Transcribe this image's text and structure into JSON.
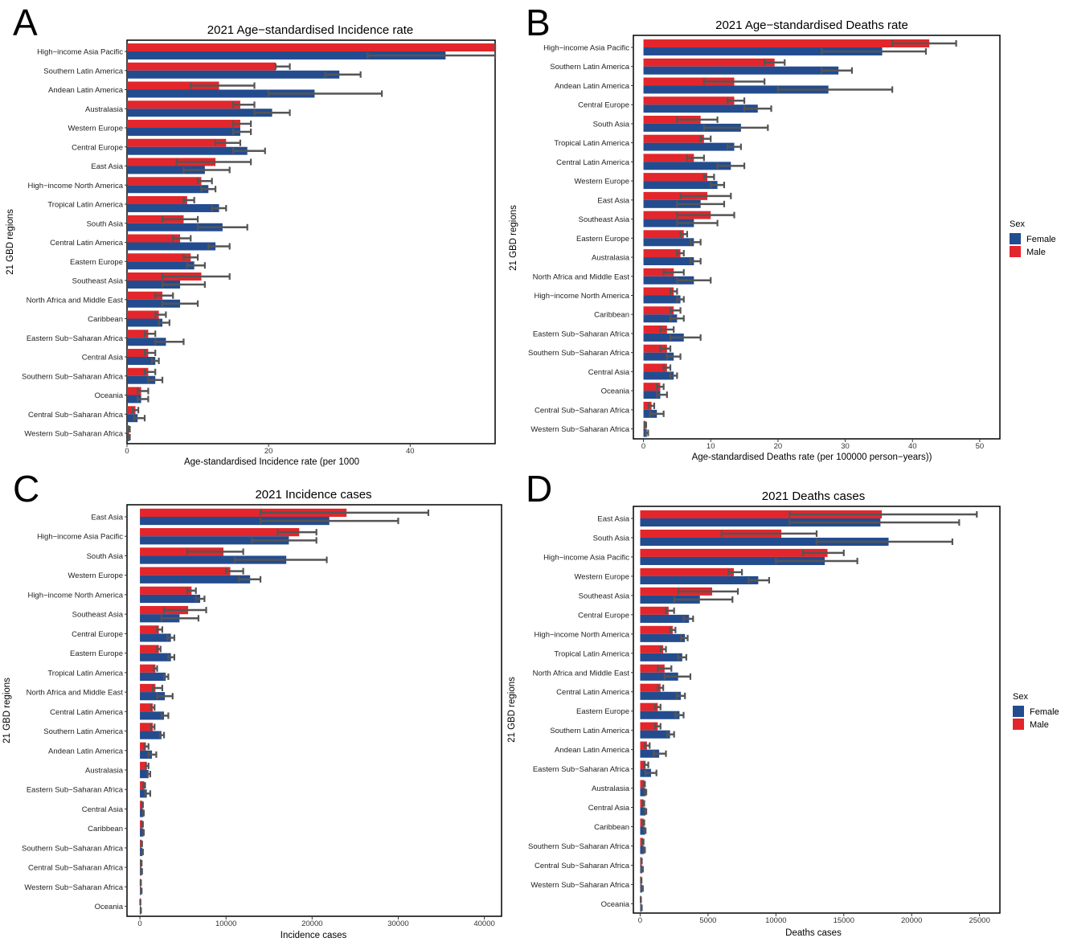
{
  "colors": {
    "female": "#234c8f",
    "male": "#e3262b",
    "error": "#555555"
  },
  "legend": {
    "title": "Sex",
    "items": [
      "Female",
      "Male"
    ]
  },
  "chart_data": [
    {
      "panel": "A",
      "type": "bar",
      "orientation": "horizontal",
      "title": "2021 Age−standardised Incidence rate",
      "xlabel": "Age-standardised Incidence rate (per 1000",
      "ylabel": "21 GBD regions",
      "xlim": [
        0,
        52
      ],
      "xticks": [
        0,
        20,
        40
      ],
      "categories": [
        "High−income Asia Pacific",
        "Southern Latin America",
        "Andean Latin America",
        "Australasia",
        "Western Europe",
        "Central Europe",
        "East Asia",
        "High−income North America",
        "Tropical Latin America",
        "South Asia",
        "Central Latin America",
        "Eastern Europe",
        "Southeast Asia",
        "North Africa and Middle East",
        "Caribbean",
        "Eastern Sub−Saharan Africa",
        "Central Asia",
        "Southern Sub−Saharan Africa",
        "Oceania",
        "Central Sub−Saharan Africa",
        "Western Sub−Saharan Africa"
      ],
      "series": [
        {
          "name": "Male",
          "values": [
            52,
            21,
            13,
            16,
            16,
            14,
            12.5,
            10.5,
            8.5,
            8,
            7.5,
            9,
            10.5,
            5,
            4.5,
            3,
            3,
            3,
            2,
            1.2,
            0.3
          ],
          "lower": [
            52,
            21,
            9,
            15,
            15,
            12.5,
            7,
            10,
            8,
            5,
            6.5,
            8,
            5,
            4,
            4,
            2.5,
            2.5,
            2.5,
            1.5,
            0.8,
            0.2
          ],
          "upper": [
            52,
            23,
            18,
            18,
            17.5,
            16,
            17.5,
            12,
            9.5,
            10,
            9,
            10,
            14.5,
            6.5,
            5.5,
            4,
            4,
            4,
            3,
            1.6,
            0.4
          ]
        },
        {
          "name": "Female",
          "values": [
            45,
            30,
            26.5,
            20.5,
            16,
            17,
            11,
            11.5,
            13,
            13.5,
            12.5,
            9.5,
            7.5,
            7.5,
            5,
            5.5,
            4,
            4,
            2,
            1.5,
            0.3
          ],
          "lower": [
            34,
            28,
            20,
            18,
            15,
            15,
            8,
            10.5,
            12,
            10,
            11.5,
            8.5,
            5,
            5,
            4.5,
            4,
            3.5,
            3,
            1.5,
            1,
            0.2
          ],
          "upper": [
            52,
            33,
            36,
            23,
            17.5,
            19.5,
            14.5,
            12.5,
            14,
            17,
            14.5,
            11,
            11,
            10,
            6,
            8,
            4.5,
            5,
            3,
            2.5,
            0.4
          ]
        }
      ]
    },
    {
      "panel": "B",
      "type": "bar",
      "orientation": "horizontal",
      "title": "2021 Age−standardised Deaths rate",
      "xlabel": "Age-standardised Deaths rate (per 100000 person−years))",
      "ylabel": "21 GBD regions",
      "xlim": [
        -1.5,
        53
      ],
      "xticks": [
        0,
        10,
        20,
        30,
        40,
        50
      ],
      "categories": [
        "High−income Asia Pacific",
        "Southern Latin America",
        "Andean Latin America",
        "Central Europe",
        "South Asia",
        "Tropical Latin America",
        "Central Latin America",
        "Western Europe",
        "East Asia",
        "Southeast Asia",
        "Eastern Europe",
        "Australasia",
        "North Africa and Middle East",
        "High−income North America",
        "Caribbean",
        "Eastern Sub−Saharan Africa",
        "Southern Sub−Saharan Africa",
        "Central Asia",
        "Oceania",
        "Central Sub−Saharan Africa",
        "Western Sub−Saharan Africa"
      ],
      "series": [
        {
          "name": "Male",
          "values": [
            42.5,
            19.5,
            13.5,
            13.5,
            8.5,
            9,
            7.5,
            9.5,
            9.5,
            10,
            6,
            5.5,
            4.5,
            4.5,
            4.5,
            3.5,
            3.5,
            3.5,
            2.5,
            1.2,
            0.3
          ],
          "lower": [
            37,
            18,
            9,
            12.5,
            5,
            8.5,
            6.5,
            9,
            5.5,
            5,
            5.5,
            5,
            3,
            4,
            4,
            2.5,
            2.5,
            3,
            2,
            0.8,
            0.2
          ],
          "upper": [
            46.5,
            21,
            18,
            15,
            11,
            10,
            9,
            10.5,
            13,
            13.5,
            6.5,
            6,
            6,
            5,
            5.5,
            4.5,
            4,
            4,
            3,
            1.6,
            0.4
          ]
        },
        {
          "name": "Female",
          "values": [
            35.5,
            29,
            27.5,
            17,
            14.5,
            13.5,
            13,
            11,
            8.5,
            7.5,
            7.5,
            7.5,
            7.5,
            5.5,
            5,
            6,
            4.5,
            4.5,
            2.5,
            2,
            0.5
          ],
          "lower": [
            26.5,
            26.5,
            20,
            15,
            9,
            12.5,
            11,
            10,
            5,
            5,
            7,
            7,
            5,
            5,
            4,
            4,
            3.5,
            4,
            2,
            1,
            0.3
          ],
          "upper": [
            42,
            31,
            37,
            19,
            18.5,
            14.5,
            15,
            12,
            12,
            11,
            8.5,
            8.5,
            10,
            6,
            6,
            8.5,
            5.5,
            5,
            3.5,
            3,
            0.7
          ]
        }
      ]
    },
    {
      "panel": "C",
      "type": "bar",
      "orientation": "horizontal",
      "title": "2021 Incidence cases",
      "xlabel": "Incidence cases",
      "ylabel": "21 GBD regions",
      "xlim": [
        -1500,
        42000
      ],
      "xticks": [
        0,
        10000,
        20000,
        30000,
        40000
      ],
      "categories": [
        "East Asia",
        "High−income Asia Pacific",
        "South Asia",
        "Western Europe",
        "High−income North America",
        "Southeast Asia",
        "Central Europe",
        "Eastern Europe",
        "Tropical Latin America",
        "North Africa and Middle East",
        "Central Latin America",
        "Southern Latin America",
        "Andean Latin America",
        "Australasia",
        "Eastern Sub−Saharan Africa",
        "Central Asia",
        "Caribbean",
        "Southern Sub−Saharan Africa",
        "Central Sub−Saharan Africa",
        "Western Sub−Saharan Africa",
        "Oceania"
      ],
      "series": [
        {
          "name": "Male",
          "values": [
            24000,
            18500,
            9700,
            10500,
            6000,
            5600,
            2200,
            2200,
            1800,
            1800,
            1500,
            1500,
            700,
            800,
            500,
            300,
            300,
            200,
            150,
            100,
            50
          ],
          "lower": [
            14000,
            16000,
            5500,
            10000,
            5500,
            2800,
            2000,
            2000,
            1600,
            1500,
            1300,
            1300,
            500,
            700,
            400,
            250,
            250,
            150,
            100,
            80,
            40
          ],
          "upper": [
            33500,
            20500,
            12000,
            12000,
            6500,
            7700,
            2600,
            2400,
            2000,
            2600,
            1700,
            1700,
            1000,
            1000,
            600,
            350,
            350,
            250,
            200,
            120,
            60
          ]
        },
        {
          "name": "Female",
          "values": [
            22000,
            17300,
            17000,
            12800,
            7000,
            4600,
            3600,
            3600,
            3000,
            2900,
            2800,
            2500,
            1400,
            1000,
            800,
            400,
            400,
            300,
            200,
            150,
            100
          ],
          "lower": [
            14000,
            13000,
            11000,
            11500,
            6500,
            2500,
            3200,
            3300,
            2800,
            2000,
            2500,
            2300,
            1000,
            900,
            600,
            350,
            350,
            250,
            150,
            100,
            80
          ],
          "upper": [
            30000,
            20500,
            21700,
            14000,
            7500,
            6800,
            4000,
            4000,
            3300,
            3800,
            3300,
            2800,
            1900,
            1200,
            1200,
            450,
            450,
            350,
            250,
            200,
            120
          ]
        }
      ]
    },
    {
      "panel": "D",
      "type": "bar",
      "orientation": "horizontal",
      "title": "2021 Deaths cases",
      "xlabel": "Deaths cases",
      "ylabel": "21 GBD regions",
      "xlim": [
        -500,
        26500
      ],
      "xticks": [
        0,
        5000,
        10000,
        15000,
        20000,
        25000
      ],
      "categories": [
        "East Asia",
        "South Asia",
        "High−income Asia Pacific",
        "Western Europe",
        "Southeast Asia",
        "Central Europe",
        "High−income North America",
        "Tropical Latin America",
        "North Africa and Middle East",
        "Central Latin America",
        "Eastern Europe",
        "Southern Latin America",
        "Andean Latin America",
        "Eastern Sub−Saharan Africa",
        "Australasia",
        "Central Asia",
        "Caribbean",
        "Southern Sub−Saharan Africa",
        "Central Sub−Saharan Africa",
        "Western Sub−Saharan Africa",
        "Oceania"
      ],
      "series": [
        {
          "name": "Male",
          "values": [
            17800,
            10400,
            13800,
            6900,
            5300,
            2100,
            2400,
            1700,
            1800,
            1500,
            1300,
            1300,
            500,
            400,
            300,
            250,
            250,
            200,
            100,
            80,
            50
          ],
          "lower": [
            11000,
            6000,
            12000,
            6500,
            2800,
            1900,
            2200,
            1500,
            1300,
            1300,
            1100,
            1100,
            350,
            300,
            250,
            200,
            200,
            150,
            80,
            60,
            40
          ],
          "upper": [
            24800,
            13000,
            15000,
            7500,
            7200,
            2500,
            2600,
            1900,
            2300,
            1700,
            1500,
            1500,
            700,
            600,
            350,
            300,
            300,
            250,
            120,
            100,
            60
          ]
        },
        {
          "name": "Female",
          "values": [
            17700,
            18300,
            13600,
            8700,
            4400,
            3600,
            3300,
            3100,
            2800,
            3000,
            2900,
            2200,
            1400,
            800,
            400,
            400,
            350,
            300,
            150,
            150,
            100
          ],
          "lower": [
            11000,
            13000,
            10000,
            8000,
            2500,
            3200,
            3000,
            2800,
            1800,
            2700,
            2600,
            2000,
            1000,
            400,
            350,
            350,
            300,
            250,
            100,
            100,
            80
          ],
          "upper": [
            23500,
            23000,
            16000,
            9500,
            6800,
            3900,
            3500,
            3400,
            3700,
            3300,
            3200,
            2500,
            1900,
            1200,
            450,
            450,
            400,
            350,
            200,
            200,
            120
          ]
        }
      ]
    }
  ]
}
